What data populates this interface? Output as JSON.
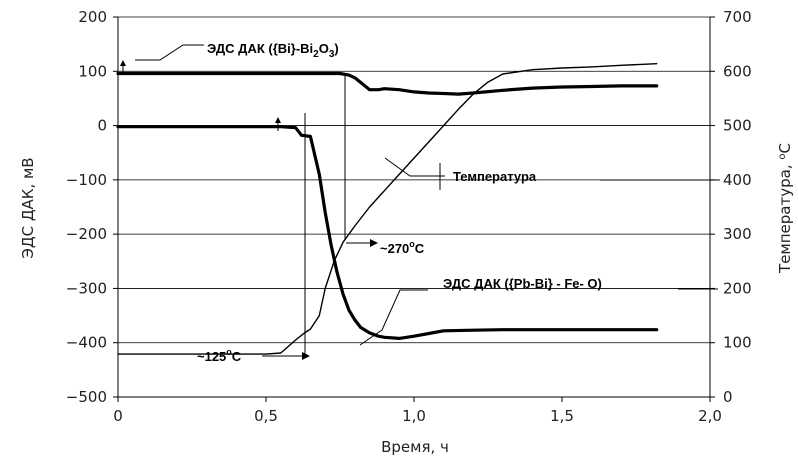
{
  "chart_data": {
    "type": "line",
    "xlabel": "Время, ч",
    "ylabel_left": "ЭДС ДАК, мВ",
    "ylabel_right": "Температура, °С",
    "xlim": [
      0,
      2.0
    ],
    "ylim_left": [
      -500,
      200
    ],
    "ylim_right": [
      0,
      700
    ],
    "x_ticks": [
      "0",
      "0,5",
      "1,0",
      "1,5",
      "2,0"
    ],
    "x_tick_values": [
      0,
      0.5,
      1.0,
      1.5,
      2.0
    ],
    "y_left_ticks": [
      "200",
      "100",
      "0",
      "−100",
      "−200",
      "−300",
      "−400",
      "−500"
    ],
    "y_left_tick_values": [
      200,
      100,
      0,
      -100,
      -200,
      -300,
      -400,
      -500
    ],
    "y_right_ticks": [
      "700",
      "600",
      "500",
      "400",
      "300",
      "200",
      "100",
      "0"
    ],
    "y_right_tick_values": [
      700,
      600,
      500,
      400,
      300,
      200,
      100,
      0
    ],
    "grid": "horizontal",
    "series": [
      {
        "name": "ЭДС ДАК ({Bi}-Bi2O3)",
        "axis": "left",
        "x": [
          0,
          0.1,
          0.2,
          0.3,
          0.4,
          0.5,
          0.6,
          0.7,
          0.75,
          0.78,
          0.8,
          0.83,
          0.85,
          0.88,
          0.9,
          0.95,
          1.0,
          1.05,
          1.1,
          1.15,
          1.2,
          1.3,
          1.4,
          1.5,
          1.6,
          1.7,
          1.82
        ],
        "values": [
          96,
          96,
          96,
          96,
          96,
          96,
          96,
          96,
          96,
          93,
          88,
          75,
          66,
          66,
          68,
          66,
          62,
          60,
          59,
          58,
          60,
          65,
          69,
          71,
          72,
          73,
          73
        ]
      },
      {
        "name": "ЭДС ДАК ({Pb-Bi} - Fe- O)",
        "axis": "left",
        "x": [
          0,
          0.1,
          0.2,
          0.3,
          0.4,
          0.5,
          0.55,
          0.6,
          0.62,
          0.65,
          0.68,
          0.7,
          0.72,
          0.74,
          0.76,
          0.78,
          0.8,
          0.82,
          0.85,
          0.88,
          0.9,
          0.95,
          1.0,
          1.05,
          1.1,
          1.2,
          1.3,
          1.4,
          1.5,
          1.6,
          1.7,
          1.82
        ],
        "values": [
          -2,
          -2,
          -2,
          -2,
          -2,
          -2,
          -2,
          -4,
          -18,
          -20,
          -90,
          -160,
          -220,
          -270,
          -310,
          -340,
          -358,
          -372,
          -382,
          -388,
          -390,
          -392,
          -388,
          -383,
          -378,
          -377,
          -376,
          -376,
          -376,
          -376,
          -376,
          -376
        ]
      },
      {
        "name": "Температура",
        "axis": "right",
        "x": [
          0,
          0.1,
          0.2,
          0.3,
          0.4,
          0.5,
          0.55,
          0.6,
          0.63,
          0.65,
          0.68,
          0.7,
          0.73,
          0.76,
          0.8,
          0.85,
          0.9,
          0.95,
          1.0,
          1.05,
          1.1,
          1.15,
          1.2,
          1.25,
          1.3,
          1.4,
          1.5,
          1.6,
          1.7,
          1.82
        ],
        "values": [
          79,
          79,
          79,
          79,
          79,
          79,
          81,
          105,
          118,
          125,
          150,
          200,
          250,
          285,
          315,
          350,
          380,
          410,
          440,
          470,
          500,
          530,
          558,
          580,
          595,
          603,
          606,
          608,
          611,
          614
        ]
      }
    ],
    "annotations": [
      {
        "text": "~125°С",
        "x": 0.64,
        "y_right": 125
      },
      {
        "text": "~270°С",
        "x": 0.76,
        "y_right": 270
      }
    ]
  },
  "labels": {
    "bi_label_main": "ЭДС ДАК ({Bi}-Bi",
    "bi_sub1": "2",
    "bi_mid": "O",
    "bi_sub2": "3",
    "bi_end": ")",
    "temp_label": "Температура",
    "pbbi_label": "ЭДС ДАК ({Pb-Bi} - Fe- O)",
    "t125_text": "~125",
    "t125_sup": "o",
    "t125_unit": "C",
    "t270_text": "~270",
    "t270_sup": "o",
    "t270_unit": "C",
    "ylabel_right_main": "Температура, ",
    "ylabel_right_sup": "o",
    "ylabel_right_unit": "С"
  }
}
